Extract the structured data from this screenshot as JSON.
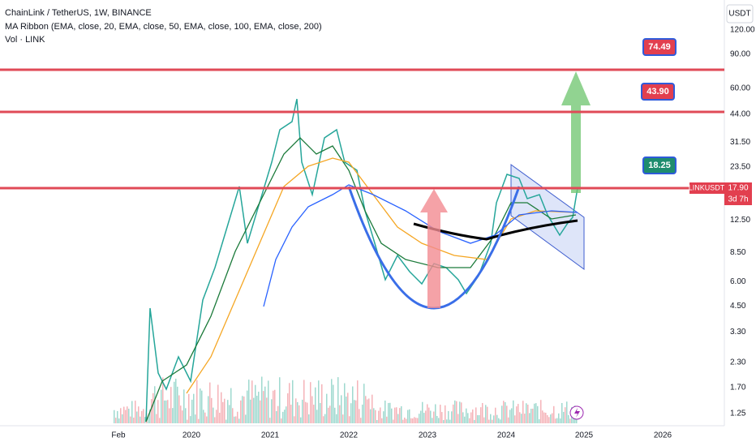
{
  "header": {
    "symbol": "ChainLink / TetherUS, 1W, BINANCE",
    "indicator": "MA Ribbon (EMA, close, 20, EMA, close, 50, EMA, close, 100, EMA, close, 200)",
    "volume": "Vol · LINK"
  },
  "price_axis": {
    "currency": "USDT",
    "labels": [
      "120.00",
      "90.00",
      "60.00",
      "44.00",
      "31.50",
      "23.50",
      "12.50",
      "8.50",
      "6.00",
      "4.50",
      "3.30",
      "2.30",
      "1.70",
      "1.25"
    ],
    "price_tag": {
      "symbol": "LINKUSDT",
      "price": "17.90",
      "countdown": "3d 7h"
    }
  },
  "time_axis": {
    "labels": [
      "Feb",
      "2020",
      "2021",
      "2022",
      "2023",
      "2024",
      "2025",
      "2026"
    ]
  },
  "levels": [
    "74.49",
    "43.90",
    "18.25"
  ]
}
